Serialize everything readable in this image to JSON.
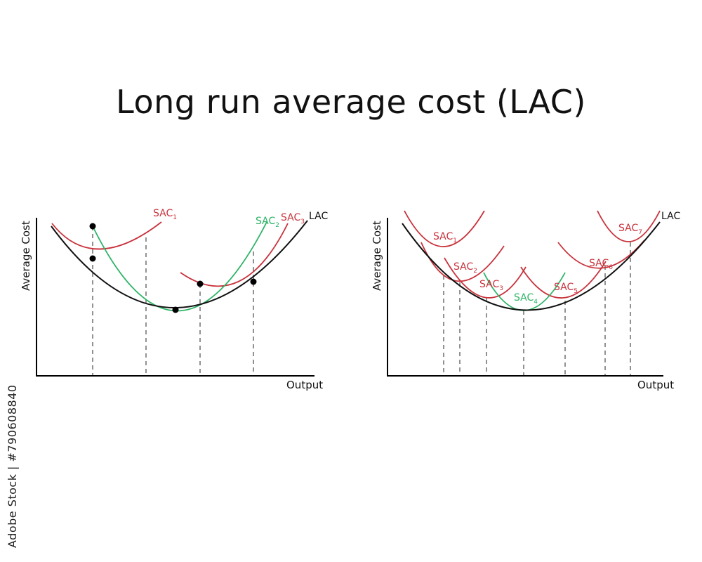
{
  "title": "Long run average cost (LAC)",
  "watermark": "Adobe Stock | #790608840",
  "colors": {
    "sac": "#c8323c",
    "highlight": "#2db466",
    "lac": "#111111",
    "guide": "#777777"
  },
  "left": {
    "y_axis": "Average Cost",
    "x_axis": "Output",
    "lac_label": "LAC",
    "sac_labels": [
      {
        "base": "SAC",
        "sub": "1",
        "color": "sac"
      },
      {
        "base": "SAC",
        "sub": "2",
        "color": "highlight"
      },
      {
        "base": "SAC",
        "sub": "3",
        "color": "sac"
      }
    ]
  },
  "right": {
    "y_axis": "Average Cost",
    "x_axis": "Output",
    "lac_label": "LAC",
    "sac_labels": [
      {
        "base": "SAC",
        "sub": "1",
        "color": "sac"
      },
      {
        "base": "SAC",
        "sub": "2",
        "color": "sac"
      },
      {
        "base": "SAC",
        "sub": "3",
        "color": "sac"
      },
      {
        "base": "SAC",
        "sub": "4",
        "color": "highlight"
      },
      {
        "base": "SAC",
        "sub": "5",
        "color": "sac"
      },
      {
        "base": "SAC",
        "sub": "6",
        "color": "sac"
      },
      {
        "base": "SAC",
        "sub": "7",
        "color": "sac"
      }
    ]
  }
}
